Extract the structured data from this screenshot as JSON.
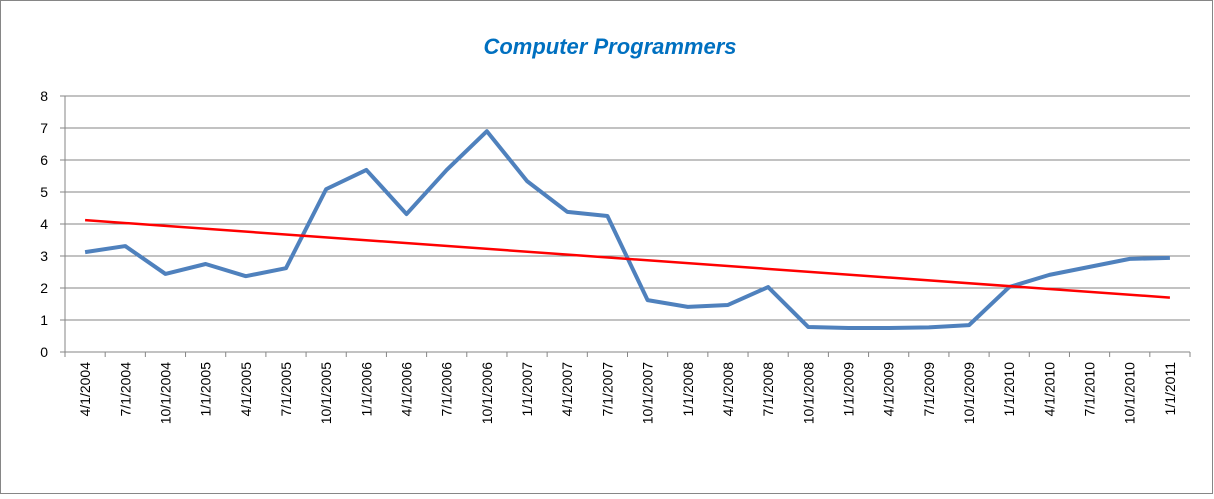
{
  "chart_data": {
    "type": "line",
    "title": "Computer Programmers",
    "categories": [
      "4/1/2004",
      "7/1/2004",
      "10/1/2004",
      "1/1/2005",
      "4/1/2005",
      "7/1/2005",
      "10/1/2005",
      "1/1/2006",
      "4/1/2006",
      "7/1/2006",
      "10/1/2006",
      "1/1/2007",
      "4/1/2007",
      "7/1/2007",
      "10/1/2007",
      "1/1/2008",
      "4/1/2008",
      "7/1/2008",
      "10/1/2008",
      "1/1/2009",
      "4/1/2009",
      "7/1/2009",
      "10/1/2009",
      "1/1/2010",
      "4/1/2010",
      "7/1/2010",
      "10/1/2010",
      "1/1/2011"
    ],
    "series": [
      {
        "color": "#4f81bd",
        "values": [
          3.12,
          3.31,
          2.44,
          2.75,
          2.37,
          2.62,
          5.09,
          5.69,
          4.31,
          5.69,
          6.9,
          5.34,
          4.38,
          4.25,
          1.62,
          1.41,
          1.47,
          2.03,
          0.78,
          0.75,
          0.75,
          0.77,
          0.84,
          2.03,
          2.41,
          2.66,
          2.91,
          2.94
        ]
      }
    ],
    "trendline": {
      "color": "#ff0000",
      "values": [
        4.12,
        1.7
      ]
    },
    "ylim": [
      0,
      8
    ],
    "yticks": [
      0,
      1,
      2,
      3,
      4,
      5,
      6,
      7,
      8
    ],
    "grid": true
  }
}
